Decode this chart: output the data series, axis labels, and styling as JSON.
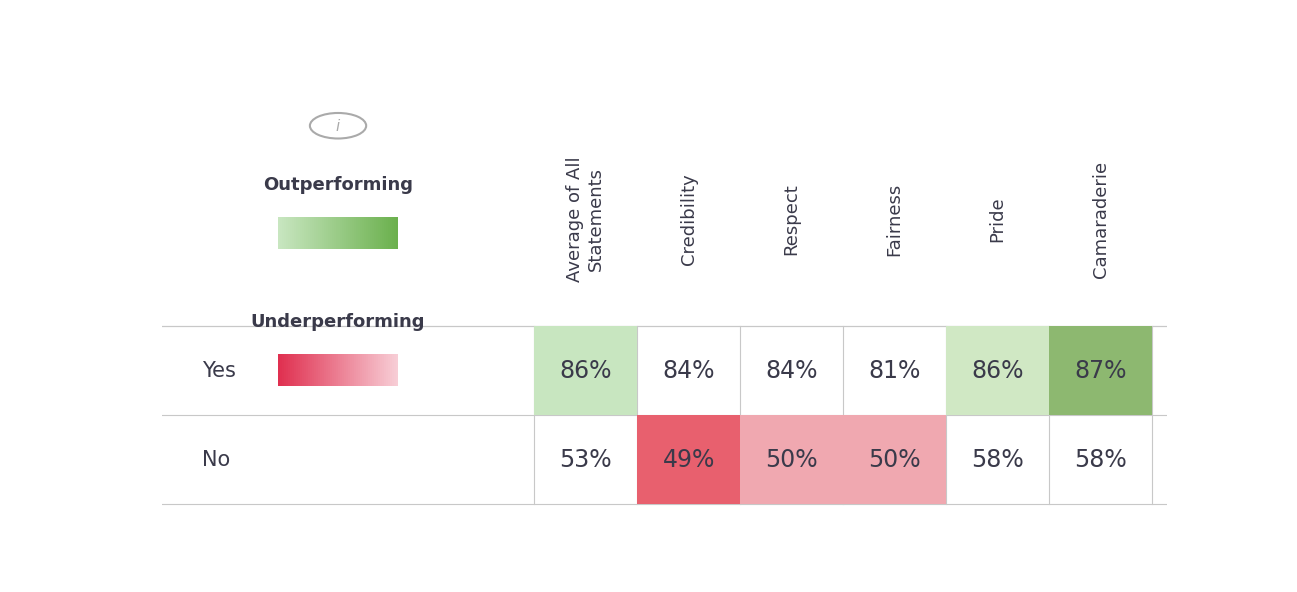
{
  "columns": [
    "Average of All\nStatements",
    "Credibility",
    "Respect",
    "Fairness",
    "Pride",
    "Camaraderie"
  ],
  "rows": [
    "Yes",
    "No"
  ],
  "values": [
    [
      86,
      84,
      84,
      81,
      86,
      87
    ],
    [
      53,
      49,
      50,
      50,
      58,
      58
    ]
  ],
  "cell_colors": [
    [
      "#c8e6c0",
      null,
      null,
      null,
      "#d0e8c4",
      "#8db870"
    ],
    [
      null,
      "#e8606e",
      "#f0a8b0",
      "#f0a8b0",
      null,
      null
    ]
  ],
  "text_color": "#3a3a4a",
  "grid_color": "#c8c8c8",
  "background_color": "#ffffff",
  "outperforming_label": "Outperforming",
  "underperforming_label": "Underperforming",
  "outperforming_grad_left": "#c8e6c0",
  "outperforming_grad_right": "#6ab04c",
  "underperforming_grad_left": "#e03050",
  "underperforming_grad_right": "#f8d0d8",
  "font_size_values": 17,
  "font_size_labels": 15,
  "font_size_headers": 13,
  "font_size_legend": 13
}
